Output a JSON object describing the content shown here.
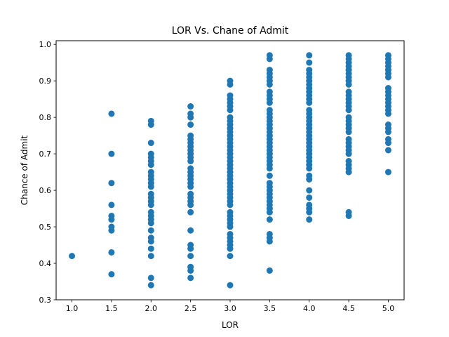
{
  "chart_data": {
    "type": "scatter",
    "title": "LOR Vs. Chane of Admit",
    "xlabel": "LOR",
    "ylabel": "Chance of Admit",
    "xlim": [
      0.8,
      5.2
    ],
    "ylim": [
      0.3,
      1.01
    ],
    "xticks": [
      1.0,
      1.5,
      2.0,
      2.5,
      3.0,
      3.5,
      4.0,
      4.5,
      5.0
    ],
    "xtick_labels": [
      "1.0",
      "1.5",
      "2.0",
      "2.5",
      "3.0",
      "3.5",
      "4.0",
      "4.5",
      "5.0"
    ],
    "yticks": [
      0.3,
      0.4,
      0.5,
      0.6,
      0.7,
      0.8,
      0.9,
      1.0
    ],
    "ytick_labels": [
      "0.3",
      "0.4",
      "0.5",
      "0.6",
      "0.7",
      "0.8",
      "0.9",
      "1.0"
    ],
    "marker_color": "#1f77b4",
    "grid": false,
    "series": [
      {
        "x": 1.0,
        "values": [
          0.42
        ]
      },
      {
        "x": 1.5,
        "values": [
          0.81,
          0.7,
          0.62,
          0.56,
          0.53,
          0.52,
          0.5,
          0.49,
          0.43,
          0.37
        ]
      },
      {
        "x": 2.0,
        "values": [
          0.79,
          0.78,
          0.73,
          0.7,
          0.69,
          0.68,
          0.67,
          0.65,
          0.64,
          0.63,
          0.62,
          0.61,
          0.59,
          0.58,
          0.57,
          0.56,
          0.54,
          0.53,
          0.52,
          0.51,
          0.49,
          0.47,
          0.46,
          0.44,
          0.42,
          0.36,
          0.34
        ]
      },
      {
        "x": 2.5,
        "values": [
          0.83,
          0.81,
          0.8,
          0.78,
          0.75,
          0.74,
          0.73,
          0.72,
          0.71,
          0.7,
          0.69,
          0.68,
          0.66,
          0.65,
          0.64,
          0.63,
          0.62,
          0.61,
          0.59,
          0.58,
          0.57,
          0.56,
          0.54,
          0.49,
          0.45,
          0.44,
          0.42,
          0.39,
          0.38,
          0.36
        ]
      },
      {
        "x": 3.0,
        "values": [
          0.9,
          0.89,
          0.86,
          0.85,
          0.84,
          0.83,
          0.82,
          0.8,
          0.79,
          0.78,
          0.77,
          0.76,
          0.75,
          0.74,
          0.73,
          0.72,
          0.71,
          0.7,
          0.69,
          0.68,
          0.67,
          0.66,
          0.65,
          0.64,
          0.63,
          0.62,
          0.61,
          0.6,
          0.59,
          0.58,
          0.57,
          0.56,
          0.54,
          0.53,
          0.52,
          0.51,
          0.5,
          0.48,
          0.47,
          0.46,
          0.45,
          0.44,
          0.42,
          0.34
        ]
      },
      {
        "x": 3.5,
        "values": [
          0.97,
          0.96,
          0.93,
          0.92,
          0.91,
          0.9,
          0.89,
          0.87,
          0.86,
          0.85,
          0.84,
          0.82,
          0.81,
          0.8,
          0.79,
          0.78,
          0.77,
          0.76,
          0.75,
          0.74,
          0.73,
          0.72,
          0.71,
          0.7,
          0.69,
          0.68,
          0.67,
          0.66,
          0.64,
          0.62,
          0.61,
          0.6,
          0.59,
          0.58,
          0.57,
          0.56,
          0.55,
          0.54,
          0.52,
          0.48,
          0.47,
          0.46,
          0.38
        ]
      },
      {
        "x": 4.0,
        "values": [
          0.97,
          0.95,
          0.93,
          0.92,
          0.91,
          0.9,
          0.89,
          0.88,
          0.87,
          0.86,
          0.85,
          0.84,
          0.82,
          0.81,
          0.8,
          0.79,
          0.78,
          0.77,
          0.76,
          0.75,
          0.74,
          0.73,
          0.72,
          0.71,
          0.7,
          0.69,
          0.68,
          0.67,
          0.66,
          0.64,
          0.63,
          0.6,
          0.58,
          0.56,
          0.55,
          0.54,
          0.52
        ]
      },
      {
        "x": 4.5,
        "values": [
          0.97,
          0.96,
          0.95,
          0.94,
          0.93,
          0.92,
          0.91,
          0.9,
          0.89,
          0.87,
          0.86,
          0.85,
          0.84,
          0.83,
          0.82,
          0.8,
          0.79,
          0.78,
          0.77,
          0.76,
          0.74,
          0.73,
          0.72,
          0.71,
          0.7,
          0.68,
          0.67,
          0.66,
          0.65,
          0.54,
          0.53
        ]
      },
      {
        "x": 5.0,
        "values": [
          0.97,
          0.96,
          0.95,
          0.94,
          0.93,
          0.92,
          0.91,
          0.88,
          0.87,
          0.86,
          0.85,
          0.84,
          0.83,
          0.82,
          0.81,
          0.78,
          0.77,
          0.76,
          0.74,
          0.73,
          0.71,
          0.65
        ]
      }
    ]
  }
}
